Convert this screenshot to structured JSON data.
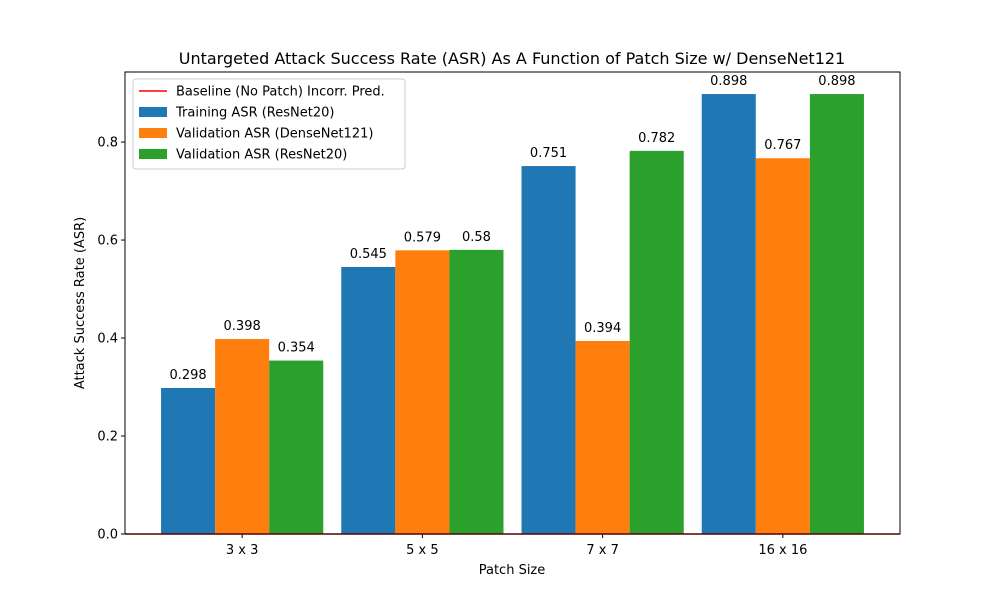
{
  "chart_data": {
    "type": "bar",
    "title": "Untargeted Attack Success Rate (ASR) As A Function of Patch Size w/ DenseNet121",
    "xlabel": "Patch Size",
    "ylabel": "Attack Success Rate (ASR)",
    "categories": [
      "3 x 3",
      "5 x 5",
      "7 x 7",
      "16 x 16"
    ],
    "ylim": [
      0,
      0.943
    ],
    "yticks": [
      0.0,
      0.2,
      0.4,
      0.6,
      0.8
    ],
    "ytick_labels": [
      "0.0",
      "0.2",
      "0.4",
      "0.6",
      "0.8"
    ],
    "grid": false,
    "legend_position": "top-left",
    "baseline": {
      "name": "Baseline (No Patch) Incorr. Pred.",
      "value": 0.0,
      "color": "#ff0000"
    },
    "series": [
      {
        "name": "Training ASR (ResNet20)",
        "color": "#1f77b4",
        "values": [
          0.298,
          0.545,
          0.751,
          0.898
        ],
        "labels": [
          "0.298",
          "0.545",
          "0.751",
          "0.898"
        ]
      },
      {
        "name": "Validation ASR (DenseNet121)",
        "color": "#ff7f0e",
        "values": [
          0.398,
          0.579,
          0.394,
          0.767
        ],
        "labels": [
          "0.398",
          "0.579",
          "0.394",
          "0.767"
        ]
      },
      {
        "name": "Validation ASR (ResNet20)",
        "color": "#2ca02c",
        "values": [
          0.354,
          0.58,
          0.782,
          0.898
        ],
        "labels": [
          "0.354",
          "0.58",
          "0.782",
          "0.898"
        ]
      }
    ]
  }
}
